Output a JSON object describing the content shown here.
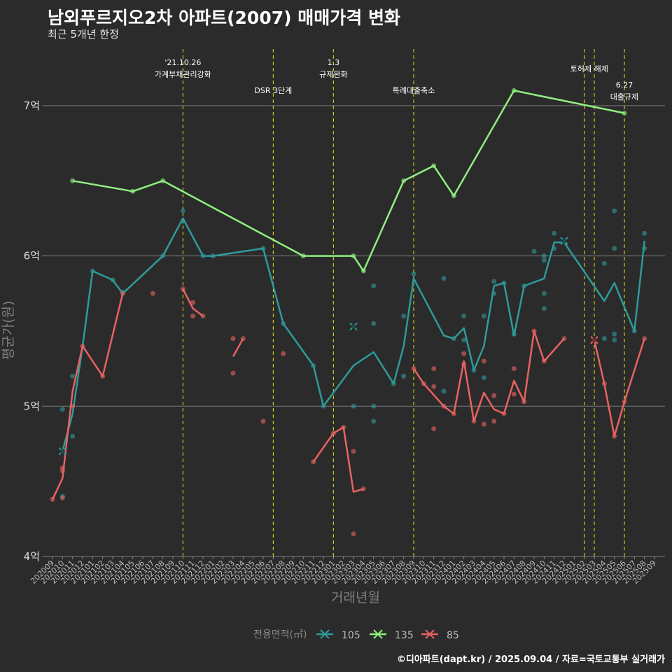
{
  "header": {
    "title": "남외푸르지오2차 아파트(2007) 매매가격 변화",
    "subtitle": "최근 5개년 한정"
  },
  "caption": "©디아파트(dapt.kr) / 2025.09.04 / 자료=국토교통부 실거래가",
  "colors": {
    "background": "#2b2b2b",
    "grid": "#7a7a7a",
    "event_line": "#e6e619"
  },
  "chart_data": {
    "type": "line",
    "xlabel": "거래년월",
    "ylabel": "평균가(원)",
    "ylim": [
      4.0,
      7.0
    ],
    "y_ticks": [
      {
        "value": 4,
        "label": "4억"
      },
      {
        "value": 5,
        "label": "5억"
      },
      {
        "value": 6,
        "label": "6억"
      },
      {
        "value": 7,
        "label": "7억"
      }
    ],
    "categories": [
      "202009",
      "202010",
      "202011",
      "202012",
      "202101",
      "202102",
      "202103",
      "202104",
      "202105",
      "202106",
      "202107",
      "202108",
      "202109",
      "202110",
      "202111",
      "202112",
      "202201",
      "202202",
      "202203",
      "202204",
      "202205",
      "202206",
      "202207",
      "202208",
      "202209",
      "202210",
      "202211",
      "202212",
      "202301",
      "202302",
      "202303",
      "202304",
      "202305",
      "202306",
      "202307",
      "202308",
      "202309",
      "202310",
      "202311",
      "202312",
      "202401",
      "202402",
      "202403",
      "202404",
      "202405",
      "202406",
      "202407",
      "202408",
      "202409",
      "202410",
      "202411",
      "202412",
      "202501",
      "202502",
      "202503",
      "202504",
      "202505",
      "202506",
      "202507",
      "202508",
      "202509"
    ],
    "legend": {
      "title": "전용면적(㎡)",
      "entries": [
        "105",
        "135",
        "85"
      ],
      "placement": "bottom"
    },
    "series": [
      {
        "name": "105",
        "color": "#2f9a9a",
        "segments": [
          [
            [
              "202010",
              4.7
            ],
            [
              "202011",
              4.95
            ],
            [
              "202012",
              5.4
            ],
            [
              "202101",
              5.9
            ],
            [
              "202103",
              5.84
            ],
            [
              "202104",
              5.75
            ],
            [
              "202108",
              6.0
            ],
            [
              "202110",
              6.25
            ],
            [
              "202112",
              6.0
            ],
            [
              "202201",
              6.0
            ],
            [
              "202206",
              6.05
            ],
            [
              "202208",
              5.55
            ],
            [
              "202211",
              5.27
            ],
            [
              "202212",
              5.0
            ],
            [
              "202303",
              5.27
            ],
            [
              "202305",
              5.36
            ],
            [
              "202307",
              5.15
            ],
            [
              "202308",
              5.4
            ],
            [
              "202309",
              5.85
            ],
            [
              "202312",
              5.47
            ],
            [
              "202401",
              5.45
            ],
            [
              "202402",
              5.52
            ],
            [
              "202403",
              5.24
            ],
            [
              "202404",
              5.4
            ],
            [
              "202405",
              5.8
            ],
            [
              "202406",
              5.82
            ],
            [
              "202407",
              5.47
            ],
            [
              "202408",
              5.8
            ],
            [
              "202410",
              5.85
            ],
            [
              "202411",
              6.09
            ],
            [
              "202412",
              6.09
            ],
            [
              "202504",
              5.7
            ],
            [
              "202505",
              5.82
            ],
            [
              "202507",
              5.5
            ],
            [
              "202508",
              6.1
            ]
          ]
        ],
        "points": [
          [
            "202010",
            4.98
          ],
          [
            "202010",
            4.7
          ],
          [
            "202010",
            4.4
          ],
          [
            "202011",
            4.8
          ],
          [
            "202011",
            5.2
          ],
          [
            "202101",
            5.9
          ],
          [
            "202103",
            5.84
          ],
          [
            "202104",
            5.76
          ],
          [
            "202108",
            6.0
          ],
          [
            "202110",
            6.3
          ],
          [
            "202110",
            6.23
          ],
          [
            "202112",
            6.0
          ],
          [
            "202201",
            6.0
          ],
          [
            "202206",
            6.05
          ],
          [
            "202208",
            5.55
          ],
          [
            "202211",
            5.27
          ],
          [
            "202212",
            5.0
          ],
          [
            "202303",
            5.53
          ],
          [
            "202303",
            5.0
          ],
          [
            "202305",
            5.8
          ],
          [
            "202305",
            5.55
          ],
          [
            "202305",
            5.0
          ],
          [
            "202305",
            4.9
          ],
          [
            "202307",
            5.15
          ],
          [
            "202308",
            5.6
          ],
          [
            "202308",
            5.2
          ],
          [
            "202309",
            5.88
          ],
          [
            "202312",
            5.85
          ],
          [
            "202312",
            5.1
          ],
          [
            "202401",
            5.45
          ],
          [
            "202402",
            5.6
          ],
          [
            "202402",
            5.44
          ],
          [
            "202403",
            5.24
          ],
          [
            "202404",
            5.6
          ],
          [
            "202404",
            5.19
          ],
          [
            "202405",
            5.83
          ],
          [
            "202405",
            5.75
          ],
          [
            "202406",
            5.82
          ],
          [
            "202407",
            5.48
          ],
          [
            "202408",
            5.8
          ],
          [
            "202409",
            6.03
          ],
          [
            "202410",
            6.0
          ],
          [
            "202410",
            5.97
          ],
          [
            "202410",
            5.75
          ],
          [
            "202410",
            5.65
          ],
          [
            "202411",
            6.15
          ],
          [
            "202411",
            6.05
          ],
          [
            "202412",
            6.1
          ],
          [
            "202504",
            5.95
          ],
          [
            "202504",
            5.45
          ],
          [
            "202505",
            6.3
          ],
          [
            "202505",
            6.05
          ],
          [
            "202505",
            5.48
          ],
          [
            "202505",
            5.44
          ],
          [
            "202507",
            5.5
          ],
          [
            "202508",
            6.15
          ],
          [
            "202508",
            6.05
          ]
        ],
        "markers_x": [
          [
            "202010",
            4.7
          ],
          [
            "202303",
            5.53
          ],
          [
            "202412",
            6.1
          ]
        ]
      },
      {
        "name": "135",
        "color": "#90ee80",
        "segments": [
          [
            [
              "202011",
              6.5
            ],
            [
              "202105",
              6.43
            ],
            [
              "202108",
              6.5
            ],
            [
              "202210",
              6.0
            ],
            [
              "202303",
              6.0
            ],
            [
              "202304",
              5.9
            ],
            [
              "202308",
              6.5
            ],
            [
              "202311",
              6.6
            ],
            [
              "202401",
              6.4
            ],
            [
              "202407",
              7.1
            ],
            [
              "202506",
              6.95
            ]
          ]
        ],
        "points": [
          [
            "202011",
            6.5
          ],
          [
            "202105",
            6.43
          ],
          [
            "202108",
            6.5
          ],
          [
            "202210",
            6.0
          ],
          [
            "202303",
            6.0
          ],
          [
            "202304",
            5.9
          ],
          [
            "202308",
            6.5
          ],
          [
            "202311",
            6.6
          ],
          [
            "202401",
            6.4
          ],
          [
            "202407",
            7.1
          ],
          [
            "202506",
            6.95
          ]
        ],
        "markers_x": []
      },
      {
        "name": "85",
        "color": "#e86262",
        "segments": [
          [
            [
              "202009",
              4.38
            ],
            [
              "202010",
              4.52
            ],
            [
              "202011",
              5.1
            ],
            [
              "202012",
              5.4
            ],
            [
              "202102",
              5.2
            ],
            [
              "202104",
              5.75
            ]
          ],
          [
            [
              "202110",
              5.78
            ],
            [
              "202111",
              5.65
            ],
            [
              "202112",
              5.6
            ]
          ],
          [
            [
              "202203",
              5.33
            ],
            [
              "202204",
              5.45
            ]
          ],
          [
            [
              "202211",
              4.63
            ],
            [
              "202301",
              4.82
            ],
            [
              "202302",
              4.86
            ],
            [
              "202303",
              4.43
            ],
            [
              "202304",
              4.45
            ]
          ],
          [
            [
              "202309",
              5.25
            ],
            [
              "202310",
              5.15
            ],
            [
              "202312",
              5.0
            ],
            [
              "202401",
              4.95
            ],
            [
              "202402",
              5.3
            ],
            [
              "202403",
              4.9
            ],
            [
              "202404",
              5.09
            ],
            [
              "202405",
              4.98
            ],
            [
              "202406",
              4.95
            ],
            [
              "202407",
              5.17
            ],
            [
              "202408",
              5.03
            ],
            [
              "202409",
              5.5
            ],
            [
              "202410",
              5.3
            ],
            [
              "202412",
              5.45
            ]
          ],
          [
            [
              "202503",
              5.44
            ],
            [
              "202504",
              5.15
            ],
            [
              "202505",
              4.8
            ],
            [
              "202506",
              5.03
            ],
            [
              "202508",
              5.45
            ]
          ]
        ],
        "points": [
          [
            "202009",
            4.38
          ],
          [
            "202010",
            4.59
          ],
          [
            "202010",
            4.57
          ],
          [
            "202010",
            4.39
          ],
          [
            "202011",
            5.0
          ],
          [
            "202012",
            5.4
          ],
          [
            "202102",
            5.2
          ],
          [
            "202104",
            5.75
          ],
          [
            "202107",
            5.75
          ],
          [
            "202110",
            5.78
          ],
          [
            "202111",
            5.69
          ],
          [
            "202111",
            5.6
          ],
          [
            "202112",
            5.6
          ],
          [
            "202203",
            5.45
          ],
          [
            "202203",
            5.22
          ],
          [
            "202204",
            5.45
          ],
          [
            "202206",
            4.9
          ],
          [
            "202208",
            5.35
          ],
          [
            "202211",
            4.63
          ],
          [
            "202301",
            4.82
          ],
          [
            "202302",
            4.86
          ],
          [
            "202303",
            4.7
          ],
          [
            "202303",
            4.15
          ],
          [
            "202304",
            4.45
          ],
          [
            "202309",
            5.25
          ],
          [
            "202310",
            5.15
          ],
          [
            "202311",
            5.25
          ],
          [
            "202311",
            5.13
          ],
          [
            "202311",
            4.85
          ],
          [
            "202312",
            5.0
          ],
          [
            "202401",
            4.95
          ],
          [
            "202402",
            5.35
          ],
          [
            "202402",
            5.28
          ],
          [
            "202403",
            4.9
          ],
          [
            "202404",
            5.3
          ],
          [
            "202404",
            4.88
          ],
          [
            "202405",
            5.07
          ],
          [
            "202405",
            4.9
          ],
          [
            "202406",
            4.95
          ],
          [
            "202407",
            5.25
          ],
          [
            "202407",
            5.08
          ],
          [
            "202408",
            5.03
          ],
          [
            "202409",
            5.5
          ],
          [
            "202410",
            5.3
          ],
          [
            "202412",
            5.45
          ],
          [
            "202503",
            5.44
          ],
          [
            "202504",
            5.15
          ],
          [
            "202505",
            4.8
          ],
          [
            "202506",
            5.03
          ],
          [
            "202508",
            5.45
          ]
        ],
        "markers_x": [
          [
            "202503",
            5.44
          ]
        ]
      }
    ],
    "events": [
      {
        "x": "202110",
        "lines": [
          "'21.10.26",
          "가계부채관리강화"
        ],
        "row": 0
      },
      {
        "x": "202207",
        "lines": [
          "DSR 3단계"
        ],
        "row": 2
      },
      {
        "x": "202301",
        "lines": [
          "1.3",
          "규제완화"
        ],
        "row": 0
      },
      {
        "x": "202309",
        "lines": [
          "특례대출축소"
        ],
        "row": 2
      },
      {
        "x": "202502",
        "lines": [
          "토허제 해제"
        ],
        "row": 1,
        "dx": 0.5
      },
      {
        "x": "202503",
        "lines": [],
        "row": 1
      },
      {
        "x": "202506",
        "lines": [
          "6.27",
          "대출규제"
        ],
        "row": 3
      }
    ]
  }
}
